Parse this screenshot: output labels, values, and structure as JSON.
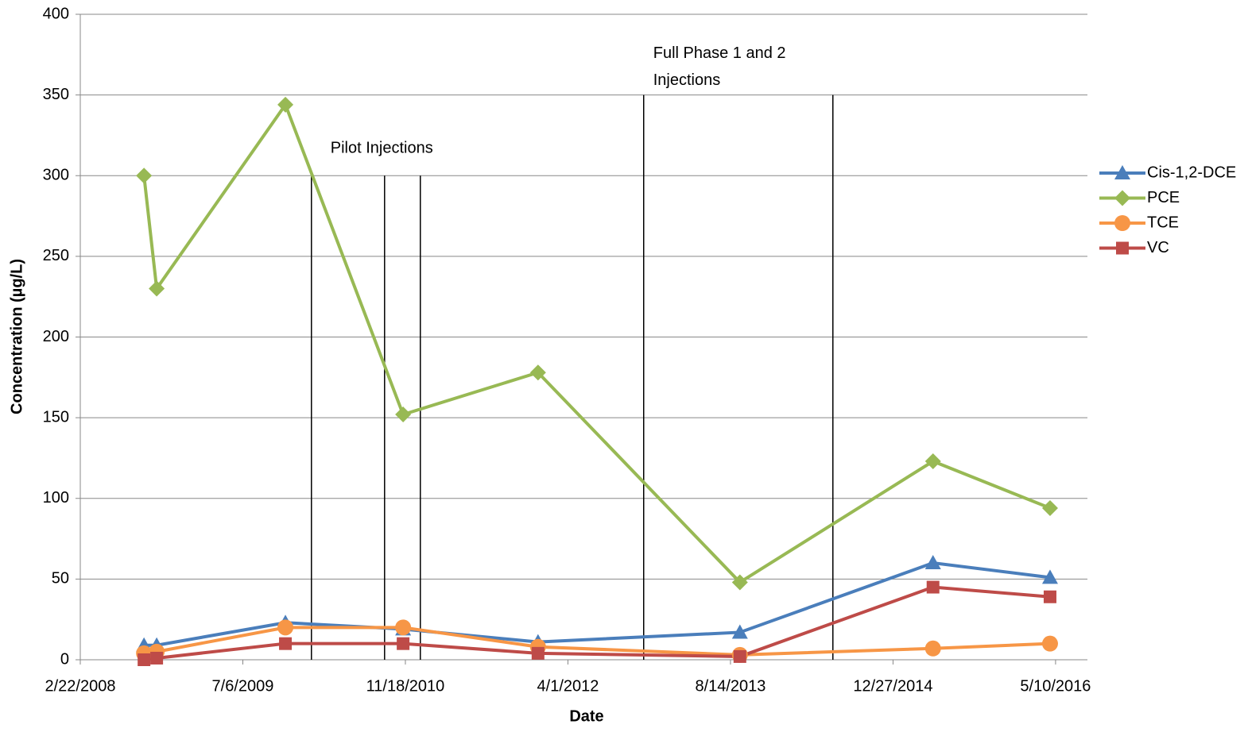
{
  "chart_data": {
    "type": "line",
    "x_label": "Date",
    "y_label": "Concentration (µg/L)",
    "x": [
      "9/5/2008",
      "10/14/2008",
      "11/14/2009",
      "11/11/2010",
      "12/31/2011",
      "9/12/2013",
      "4/29/2015",
      "4/23/2016"
    ],
    "series": [
      {
        "name": "Cis-1,2-DCE",
        "color": "#4a7ebb",
        "marker": "triangle",
        "values": [
          9,
          9,
          23,
          19,
          11,
          17,
          60,
          51
        ]
      },
      {
        "name": "PCE",
        "color": "#98b954",
        "marker": "diamond",
        "values": [
          300,
          230,
          344,
          152,
          178,
          48,
          123,
          94
        ]
      },
      {
        "name": "TCE",
        "color": "#f79646",
        "marker": "circle",
        "values": [
          4,
          5,
          20,
          20,
          8,
          3,
          7,
          10
        ]
      },
      {
        "name": "VC",
        "color": "#be4b48",
        "marker": "square",
        "values": [
          0,
          1,
          10,
          10,
          4,
          2,
          45,
          39
        ]
      }
    ],
    "xlim": [
      "2/22/2008",
      "8/16/2016"
    ],
    "xticks": [
      "2/22/2008",
      "7/6/2009",
      "11/18/2010",
      "4/1/2012",
      "8/14/2013",
      "12/27/2014",
      "5/10/2016"
    ],
    "ylim": [
      0,
      400
    ],
    "yticks": [
      0,
      50,
      100,
      150,
      200,
      250,
      300,
      350,
      400
    ],
    "grid": true,
    "legend": "right",
    "annotations": [
      {
        "text": "Pilot Injections",
        "lines": [
          {
            "x": "2/2/2010",
            "y": 300
          },
          {
            "x": "9/15/2010",
            "y": 300
          },
          {
            "x": "1/3/2011",
            "y": 300
          }
        ]
      },
      {
        "text": [
          "Full Phase 1 and 2",
          "Injections"
        ],
        "lines": [
          {
            "x": "11/20/2012",
            "y": 350
          },
          {
            "x": "6/25/2014",
            "y": 350
          }
        ]
      }
    ]
  }
}
